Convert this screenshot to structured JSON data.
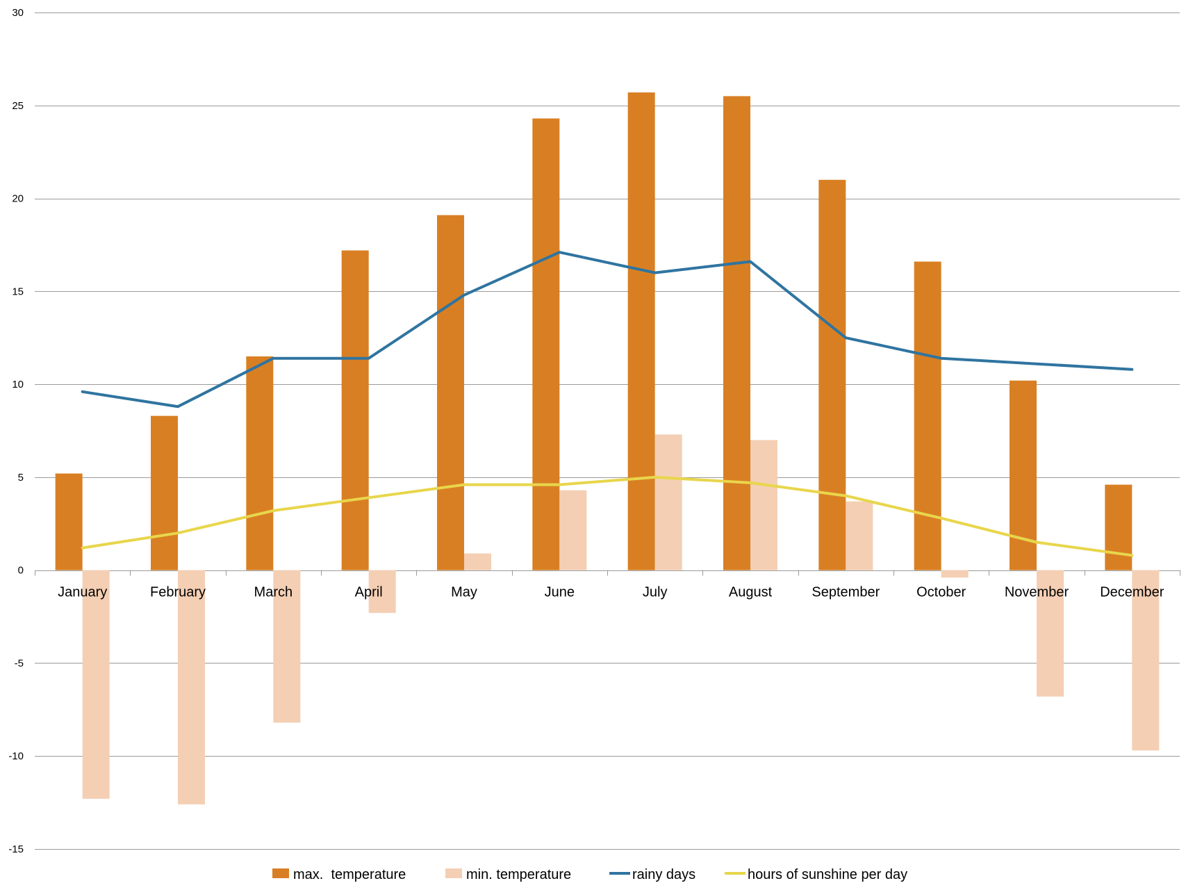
{
  "chart_data": {
    "type": "bar",
    "categories": [
      "January",
      "February",
      "March",
      "April",
      "May",
      "June",
      "July",
      "August",
      "September",
      "October",
      "November",
      "December"
    ],
    "series": [
      {
        "name": "max.  temperature",
        "kind": "bar",
        "color": "#d97f23",
        "values": [
          5.2,
          8.3,
          11.5,
          17.2,
          19.1,
          24.3,
          25.7,
          25.5,
          21.0,
          16.6,
          10.2,
          4.6
        ]
      },
      {
        "name": "min. temperature",
        "kind": "bar",
        "color": "#f4cfb4",
        "values": [
          -12.3,
          -12.6,
          -8.2,
          -2.3,
          0.9,
          4.3,
          7.3,
          7.0,
          3.7,
          -0.4,
          -6.8,
          -9.7
        ]
      },
      {
        "name": "rainy days",
        "kind": "line",
        "color": "#2f74a0",
        "values": [
          9.6,
          8.8,
          11.4,
          11.4,
          14.8,
          17.1,
          16.0,
          16.6,
          12.5,
          11.4,
          11.1,
          10.8
        ]
      },
      {
        "name": "hours of sunshine per day",
        "kind": "line",
        "color": "#e8d64c",
        "values": [
          1.2,
          2.0,
          3.2,
          3.9,
          4.6,
          4.6,
          5.0,
          4.7,
          4.0,
          2.8,
          1.5,
          0.8
        ]
      }
    ],
    "title": "",
    "xlabel": "",
    "ylabel": "",
    "ylim": [
      -15,
      30
    ],
    "yticks": [
      30,
      25,
      20,
      15,
      10,
      5,
      0,
      -5,
      -10,
      -15
    ],
    "grid": "horizontal",
    "legend": "bottom"
  }
}
